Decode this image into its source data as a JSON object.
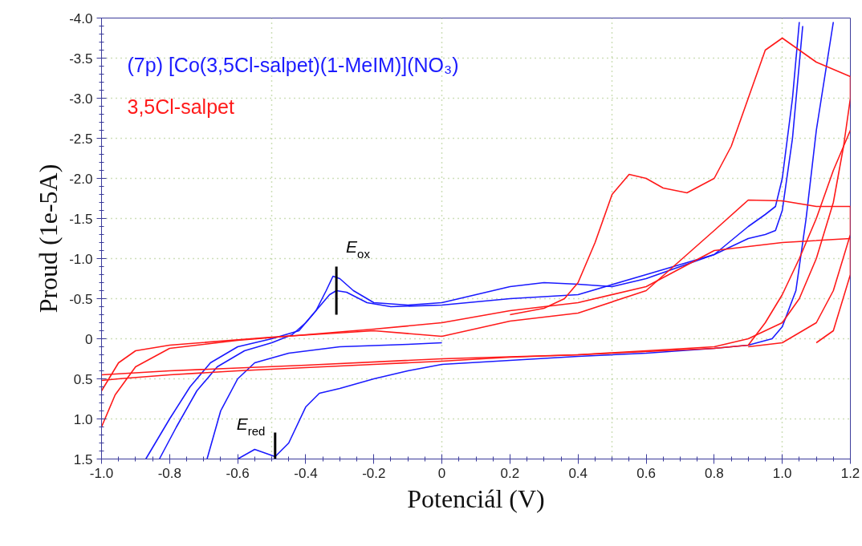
{
  "chart_data": {
    "type": "line",
    "xlabel": "Potenciál (V)",
    "ylabel": "Proud (1e-5A)",
    "xlim": [
      -1.0,
      1.2
    ],
    "ylim": [
      1.5,
      -4.0
    ],
    "xticks": [
      {
        "value": -1.0,
        "label": "-1.0"
      },
      -0.8,
      -0.6,
      -0.4,
      -0.2,
      0,
      0.2,
      0.4,
      0.6,
      0.8,
      {
        "value": 1.0,
        "label": "1.0"
      },
      1.2
    ],
    "yticks": [
      {
        "value": -4.0,
        "label": "-4.0"
      },
      -3.5,
      {
        "value": -3.0,
        "label": "-3.0"
      },
      -2.5,
      {
        "value": -2.0,
        "label": "-2.0"
      },
      -1.5,
      {
        "value": -1.0,
        "label": "-1.0"
      },
      -0.5,
      0,
      0.5,
      {
        "value": 1.0,
        "label": "1.0"
      },
      1.5
    ],
    "grid": true,
    "legend": "top left",
    "marker": "none",
    "line_style": "solid",
    "series": [
      {
        "name": "(7p) [Co(3,5Cl-salpet)(1-MeIM)](NO₃)",
        "color": "#1a1aff",
        "x": [
          -0.87,
          -0.8,
          -0.74,
          -0.68,
          -0.6,
          -0.5,
          -0.42,
          -0.37,
          -0.34,
          -0.32,
          -0.3,
          -0.26,
          -0.2,
          -0.1,
          0,
          0.1,
          0.2,
          0.3,
          0.4,
          0.5,
          0.6,
          0.8,
          0.9,
          0.95,
          0.98,
          1.0,
          1.03,
          1.05
        ],
        "values": [
          1.5,
          1.0,
          0.6,
          0.3,
          0.1,
          0.0,
          -0.1,
          -0.35,
          -0.6,
          -0.78,
          -0.75,
          -0.6,
          -0.45,
          -0.42,
          -0.45,
          -0.55,
          -0.65,
          -0.7,
          -0.68,
          -0.65,
          -0.75,
          -1.05,
          -1.4,
          -1.55,
          -1.65,
          -2.0,
          -3.0,
          -3.95
        ]
      },
      {
        "color": "#1a1aff",
        "x": [
          -0.83,
          -0.78,
          -0.72,
          -0.66,
          -0.58,
          -0.5,
          -0.44,
          -0.4,
          -0.36,
          -0.33,
          -0.31,
          -0.28,
          -0.22,
          -0.15,
          0,
          0.2,
          0.4,
          0.6,
          0.8,
          0.9,
          0.95,
          0.98,
          1.0,
          1.03,
          1.06
        ],
        "values": [
          1.5,
          1.1,
          0.65,
          0.35,
          0.15,
          0.05,
          -0.05,
          -0.2,
          -0.4,
          -0.55,
          -0.6,
          -0.58,
          -0.45,
          -0.4,
          -0.42,
          -0.5,
          -0.55,
          -0.8,
          -1.05,
          -1.25,
          -1.3,
          -1.35,
          -1.6,
          -2.5,
          -3.9
        ]
      },
      {
        "color": "#1a1aff",
        "x": [
          -0.6,
          -0.55,
          -0.49,
          -0.45,
          -0.4,
          -0.36,
          -0.3,
          -0.2,
          -0.1,
          0,
          0.2,
          0.4,
          0.6,
          0.8,
          0.9,
          0.97,
          1.0,
          1.04,
          1.07,
          1.1,
          1.15
        ],
        "values": [
          1.5,
          1.38,
          1.47,
          1.3,
          0.85,
          0.68,
          0.62,
          0.5,
          0.4,
          0.32,
          0.27,
          0.22,
          0.18,
          0.12,
          0.08,
          0.0,
          -0.15,
          -0.6,
          -1.5,
          -2.6,
          -3.95
        ]
      },
      {
        "color": "#1a1aff",
        "x": [
          -0.69,
          -0.65,
          -0.6,
          -0.55,
          -0.45,
          -0.3,
          -0.1,
          0
        ],
        "values": [
          1.5,
          0.9,
          0.5,
          0.3,
          0.18,
          0.1,
          0.07,
          0.05
        ]
      },
      {
        "name": "3,5Cl-salpet",
        "color": "#ff1a1a",
        "x": [
          0.2,
          0.3,
          0.36,
          0.4,
          0.45,
          0.5,
          0.55,
          0.6,
          0.65,
          0.72,
          0.8,
          0.85,
          0.9,
          0.95,
          1.0,
          1.05,
          1.1,
          1.2,
          1.2,
          1.18,
          1.15,
          1.1,
          1.05,
          1.0,
          0.9,
          0.8,
          0.6,
          0.4,
          0.2,
          0,
          -0.2,
          -0.4,
          -0.6,
          -0.8,
          -0.95,
          -1.0
        ],
        "values": [
          -0.3,
          -0.38,
          -0.5,
          -0.7,
          -1.2,
          -1.8,
          -2.05,
          -2.0,
          -1.88,
          -1.82,
          -2.0,
          -2.4,
          -3.0,
          -3.6,
          -3.75,
          -3.6,
          -3.45,
          -3.27,
          -3.0,
          -2.4,
          -1.7,
          -1.0,
          -0.5,
          -0.2,
          0.0,
          0.1,
          0.15,
          0.2,
          0.23,
          0.28,
          0.32,
          0.36,
          0.4,
          0.45,
          0.5,
          0.52
        ]
      },
      {
        "color": "#ff1a1a",
        "x": [
          -1.0,
          -0.96,
          -0.9,
          -0.8,
          -0.6,
          -0.4,
          -0.2,
          0,
          0.2,
          0.4,
          0.6,
          0.8,
          0.9,
          1.0,
          1.2,
          1.2,
          1.15,
          1.1
        ],
        "values": [
          1.1,
          0.7,
          0.35,
          0.12,
          0.02,
          -0.05,
          -0.12,
          -0.2,
          -0.35,
          -0.45,
          -0.65,
          -1.1,
          -1.15,
          -1.2,
          -1.25,
          -0.8,
          -0.1,
          0.05
        ]
      },
      {
        "color": "#ff1a1a",
        "x": [
          -1.0,
          -0.95,
          -0.9,
          -0.8,
          -0.5,
          -0.2,
          0,
          0.2,
          0.4,
          0.6,
          0.8,
          0.9,
          1.0,
          1.1,
          1.2,
          1.2,
          1.15,
          1.1,
          1.0,
          0.9
        ],
        "values": [
          0.65,
          0.3,
          0.15,
          0.08,
          -0.02,
          -0.1,
          -0.03,
          -0.22,
          -0.32,
          -0.6,
          -1.35,
          -1.73,
          -1.72,
          -1.65,
          -1.65,
          -1.3,
          -0.6,
          -0.2,
          0.05,
          0.1
        ]
      },
      {
        "color": "#ff1a1a",
        "x": [
          -1.0,
          -0.8,
          -0.4,
          0,
          0.4,
          0.8,
          0.9,
          0.95,
          1.0,
          1.05,
          1.1,
          1.15,
          1.2
        ],
        "values": [
          0.45,
          0.4,
          0.33,
          0.25,
          0.2,
          0.12,
          0.08,
          -0.2,
          -0.55,
          -1.0,
          -1.5,
          -2.1,
          -2.6
        ]
      }
    ],
    "annotations": [
      {
        "text": "E$_{ox}$",
        "x": -0.31,
        "y": -0.6
      },
      {
        "text": "E$_{red}$",
        "x": -0.49,
        "y": 1.47
      }
    ]
  }
}
